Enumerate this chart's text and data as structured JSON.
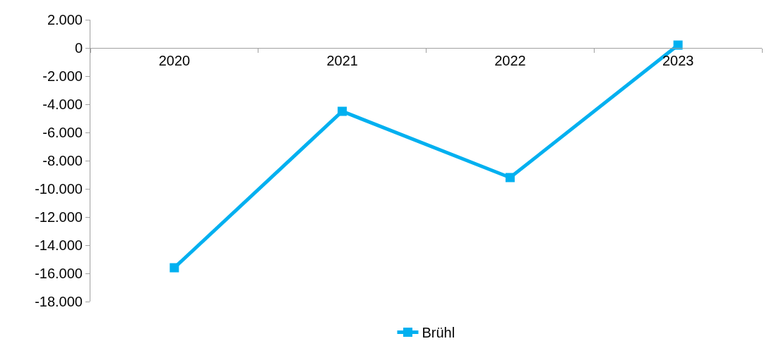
{
  "chart_data": {
    "type": "line",
    "categories": [
      "2020",
      "2021",
      "2022",
      "2023"
    ],
    "series": [
      {
        "name": "Brühl",
        "color": "#00b0f0",
        "values": [
          -15600,
          -4500,
          -9200,
          200
        ]
      }
    ],
    "ylim": [
      -18000,
      2000
    ],
    "yticks": [
      {
        "value": -18000,
        "label": "-18.000"
      },
      {
        "value": -16000,
        "label": "-16.000"
      },
      {
        "value": -14000,
        "label": "-14.000"
      },
      {
        "value": -12000,
        "label": "-12.000"
      },
      {
        "value": -10000,
        "label": "-10.000"
      },
      {
        "value": -8000,
        "label": "-8.000"
      },
      {
        "value": -6000,
        "label": "-6.000"
      },
      {
        "value": -4000,
        "label": "-4.000"
      },
      {
        "value": -2000,
        "label": "-2.000"
      },
      {
        "value": 0,
        "label": "0"
      },
      {
        "value": 2000,
        "label": "2.000"
      }
    ],
    "legend": "bottom",
    "marker": "square",
    "line_style": "solid"
  }
}
